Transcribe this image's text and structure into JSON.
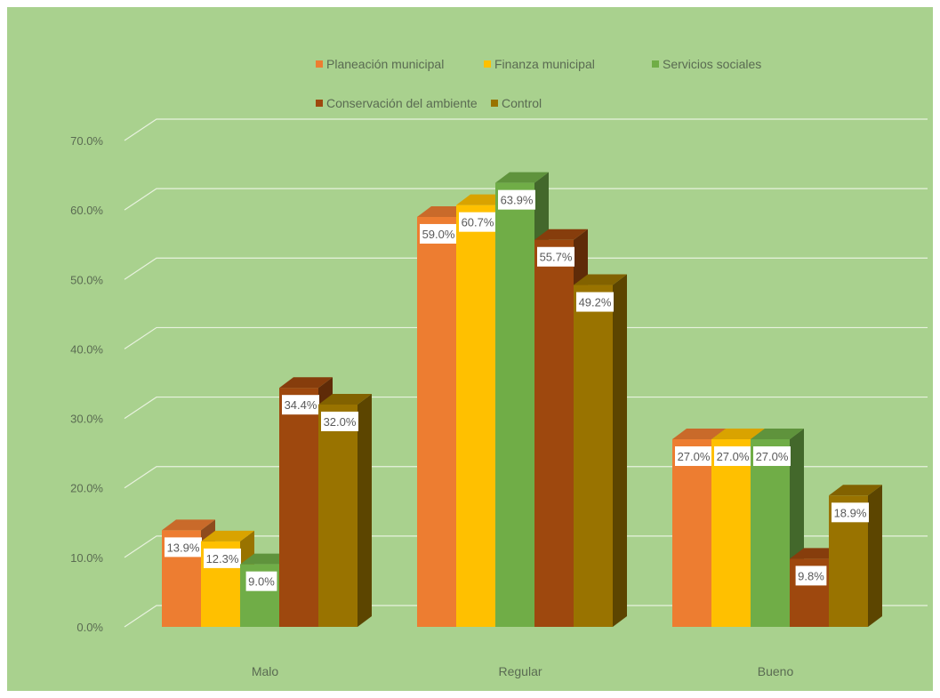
{
  "chart_data": {
    "type": "bar",
    "categories": [
      "Malo",
      "Regular",
      "Bueno"
    ],
    "series": [
      {
        "name": "Planeación municipal",
        "color": "#ed7d31",
        "values": [
          13.9,
          59.0,
          27.0
        ]
      },
      {
        "name": "Finanza municipal",
        "color": "#ffc000",
        "values": [
          12.3,
          60.7,
          27.0
        ]
      },
      {
        "name": "Servicios sociales",
        "color": "#70ad47",
        "values": [
          9.0,
          63.9,
          27.0
        ]
      },
      {
        "name": "Conservación del ambiente",
        "color": "#9e480e",
        "values": [
          34.4,
          55.7,
          9.8
        ]
      },
      {
        "name": "Control",
        "color": "#997300",
        "values": [
          32.0,
          49.2,
          18.9
        ]
      }
    ],
    "data_labels": [
      [
        "13.9%",
        "59.0%",
        "27.0%"
      ],
      [
        "12.3%",
        "60.7%",
        "27.0%"
      ],
      [
        "9.0%",
        "63.9%",
        "27.0%"
      ],
      [
        "34.4%",
        "55.7%",
        "9.8%"
      ],
      [
        "32.0%",
        "49.2%",
        "18.9%"
      ]
    ],
    "y_ticks": [
      "0.0%",
      "10.0%",
      "20.0%",
      "30.0%",
      "40.0%",
      "50.0%",
      "60.0%",
      "70.0%"
    ],
    "ylim": [
      0,
      70
    ],
    "grid": true,
    "legend_position": "top",
    "background_color": "#a9d18e",
    "gridline_color": "#e8f2de",
    "label_color": "#5a6b52"
  }
}
